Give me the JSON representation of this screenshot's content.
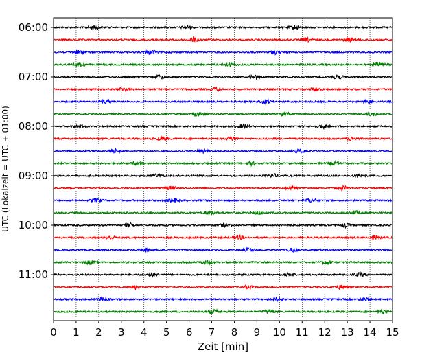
{
  "chart_data": {
    "type": "line",
    "title": "",
    "xlabel": "Zeit  [min]",
    "ylabel": "UTC (Lokalzeit = UTC + 01:00)",
    "xlim": [
      0,
      15
    ],
    "x_ticks": [
      "0",
      "1",
      "2",
      "3",
      "4",
      "5",
      "6",
      "7",
      "8",
      "9",
      "10",
      "11",
      "12",
      "13",
      "14",
      "15"
    ],
    "y_tick_labels": [
      "06:00",
      "07:00",
      "08:00",
      "09:00",
      "10:00",
      "11:00"
    ],
    "rows_per_hour": 4,
    "row_minutes": 15,
    "start_time": "06:00",
    "end_time": "12:00",
    "grid": "vertical dotted",
    "row_colors": [
      "#000000",
      "#ff0000",
      "#0000ff",
      "#008000"
    ],
    "series": [
      {
        "start": "06:00",
        "color": "#000000",
        "bursts_min": [
          1.8,
          5.9,
          10.7
        ]
      },
      {
        "start": "06:15",
        "color": "#ff0000",
        "bursts_min": [
          6.2,
          11.3,
          13.1
        ]
      },
      {
        "start": "06:30",
        "color": "#0000ff",
        "bursts_min": [
          1.1,
          4.3,
          9.8
        ]
      },
      {
        "start": "06:45",
        "color": "#008000",
        "bursts_min": [
          1.2,
          7.8,
          14.4
        ]
      },
      {
        "start": "07:00",
        "color": "#000000",
        "bursts_min": [
          4.7,
          8.9,
          12.6
        ]
      },
      {
        "start": "07:15",
        "color": "#ff0000",
        "bursts_min": [
          3.1,
          7.2,
          11.6
        ]
      },
      {
        "start": "07:30",
        "color": "#0000ff",
        "bursts_min": [
          2.3,
          9.4,
          13.9
        ]
      },
      {
        "start": "07:45",
        "color": "#008000",
        "bursts_min": [
          6.4,
          10.2,
          14.1
        ]
      },
      {
        "start": "08:00",
        "color": "#000000",
        "bursts_min": [
          1.1,
          8.4,
          11.9
        ]
      },
      {
        "start": "08:15",
        "color": "#ff0000",
        "bursts_min": [
          4.8,
          7.9,
          13.2
        ]
      },
      {
        "start": "08:30",
        "color": "#0000ff",
        "bursts_min": [
          2.7,
          6.6,
          10.9
        ]
      },
      {
        "start": "08:45",
        "color": "#008000",
        "bursts_min": [
          3.7,
          8.8,
          12.4
        ]
      },
      {
        "start": "09:00",
        "color": "#000000",
        "bursts_min": [
          4.6,
          9.7,
          13.5
        ]
      },
      {
        "start": "09:15",
        "color": "#ff0000",
        "bursts_min": [
          5.2,
          10.5,
          12.8
        ]
      },
      {
        "start": "09:30",
        "color": "#0000ff",
        "bursts_min": [
          1.9,
          5.3,
          11.4
        ]
      },
      {
        "start": "09:45",
        "color": "#008000",
        "bursts_min": [
          6.9,
          9.1,
          13.3
        ]
      },
      {
        "start": "10:00",
        "color": "#000000",
        "bursts_min": [
          3.4,
          7.6,
          12.9
        ]
      },
      {
        "start": "10:15",
        "color": "#ff0000",
        "bursts_min": [
          2.5,
          8.2,
          14.2
        ]
      },
      {
        "start": "10:30",
        "color": "#0000ff",
        "bursts_min": [
          4.1,
          8.7,
          10.6
        ]
      },
      {
        "start": "10:45",
        "color": "#008000",
        "bursts_min": [
          1.6,
          6.8,
          12.1
        ]
      },
      {
        "start": "11:00",
        "color": "#000000",
        "bursts_min": [
          4.4,
          10.4,
          13.6
        ]
      },
      {
        "start": "11:15",
        "color": "#ff0000",
        "bursts_min": [
          3.6,
          8.6,
          12.7
        ]
      },
      {
        "start": "11:30",
        "color": "#0000ff",
        "bursts_min": [
          2.2,
          9.9,
          13.8
        ]
      },
      {
        "start": "11:45",
        "color": "#008000",
        "bursts_min": [
          7.1,
          9.5,
          14.6
        ]
      }
    ]
  }
}
